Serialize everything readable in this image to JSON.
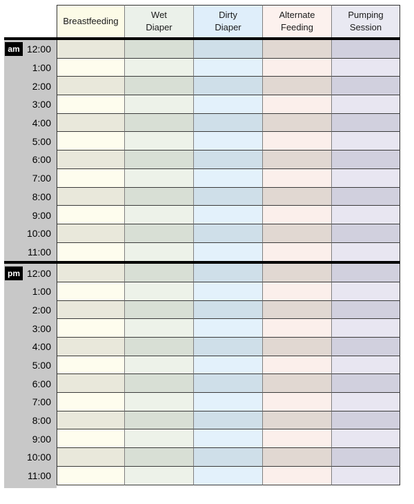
{
  "chart": {
    "columns": [
      {
        "id": "breastfeeding",
        "label": "Breastfeeding",
        "header_bg": "#fcfbe7",
        "row_light": "#fefdee",
        "row_dark": "#e9e8db"
      },
      {
        "id": "wet-diaper",
        "label": "Wet\nDiaper",
        "header_bg": "#ebf1ea",
        "row_light": "#edf2e9",
        "row_dark": "#d8dfd5"
      },
      {
        "id": "dirty-diaper",
        "label": "Dirty\nDiaper",
        "header_bg": "#dfeefa",
        "row_light": "#e3f1fb",
        "row_dark": "#cfdfe9"
      },
      {
        "id": "alternate-feeding",
        "label": "Alternate\nFeeding",
        "header_bg": "#fcf1ee",
        "row_light": "#fbefeb",
        "row_dark": "#e1d8d2"
      },
      {
        "id": "pumping-session",
        "label": "Pumping\nSession",
        "header_bg": "#e9e9f2",
        "row_light": "#e8e6f1",
        "row_dark": "#d1d0de"
      }
    ],
    "sections": [
      {
        "meridiem": "am",
        "times": [
          "12:00",
          "1:00",
          "2:00",
          "3:00",
          "4:00",
          "5:00",
          "6:00",
          "7:00",
          "8:00",
          "9:00",
          "10:00",
          "11:00"
        ]
      },
      {
        "meridiem": "pm",
        "times": [
          "12:00",
          "1:00",
          "2:00",
          "3:00",
          "4:00",
          "5:00",
          "6:00",
          "7:00",
          "8:00",
          "9:00",
          "10:00",
          "11:00"
        ]
      }
    ],
    "colors": {
      "page_bg": "#ffffff",
      "time_col_bg": "#c8c8c8",
      "divider": "#000000",
      "row_line": "#3a3a3a",
      "col_line": "#808080",
      "outer_line": "#333333",
      "badge_bg": "#000000",
      "badge_text": "#ffffff",
      "header_text": "#1a1a1a",
      "time_text": "#000000"
    }
  }
}
